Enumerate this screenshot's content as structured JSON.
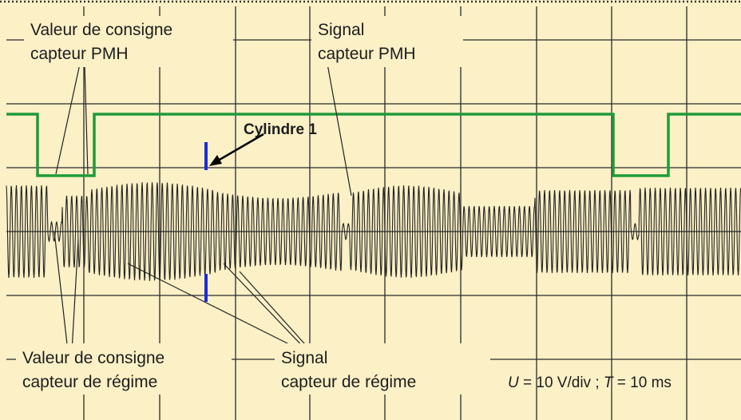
{
  "labels": {
    "top_left": [
      "Valeur de consigne",
      "capteur PMH"
    ],
    "top_right": [
      "Signal",
      "capteur PMH"
    ],
    "marker": "Cylindre 1",
    "bottom_left": [
      "Valeur de consigne",
      "capteur de régime"
    ],
    "bottom_right": [
      "Signal",
      "capteur de régime"
    ],
    "scale": {
      "u_symbol": "U",
      "u_text": " = 10 V/div ; ",
      "t_symbol": "T",
      "t_text": " = 10 ms"
    }
  }
}
